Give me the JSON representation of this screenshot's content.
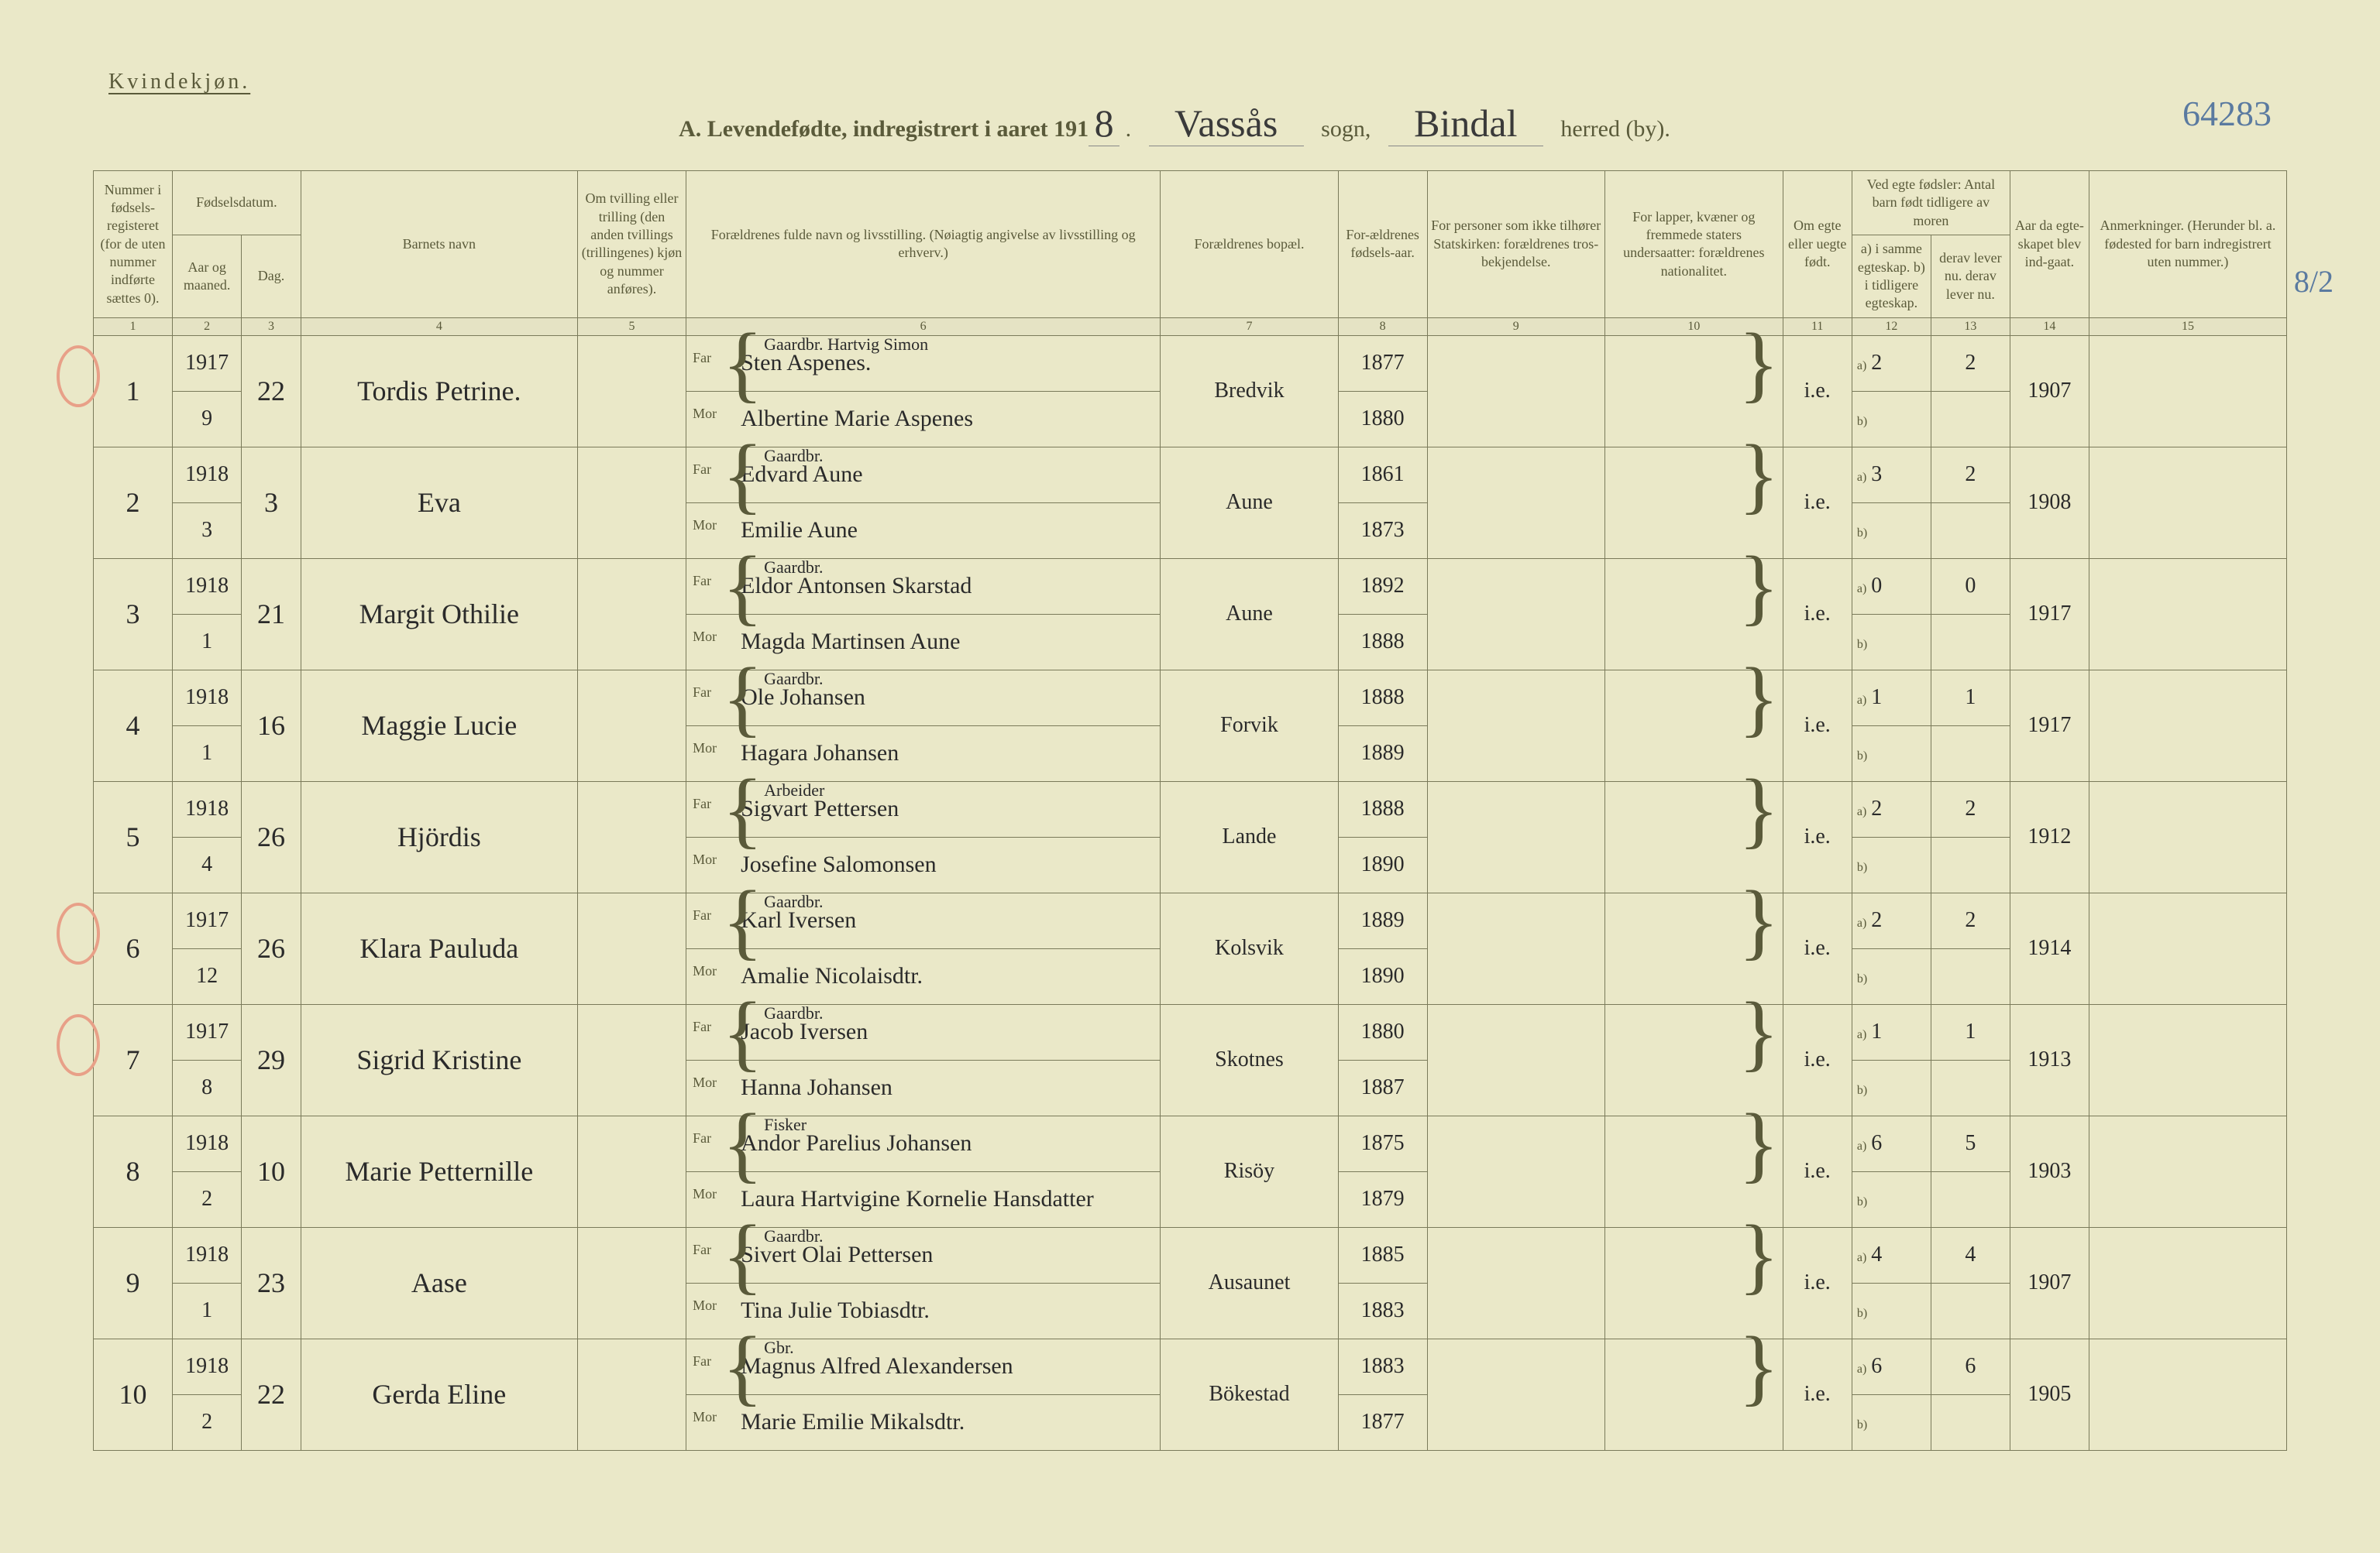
{
  "header": {
    "gender": "Kvindekjøn.",
    "prefix": "A. Levendefødte, indregistrert i aaret 191",
    "year_digit": "8",
    "sogn_label": "sogn,",
    "sogn": "Vassås",
    "herred_label": "herred (by).",
    "herred": "Bindal",
    "page_number": "64283",
    "side_note": "8/2"
  },
  "columns": {
    "c1": "Nummer i fødsels-registeret (for de uten nummer indførte sættes 0).",
    "c2_group": "Fødselsdatum.",
    "c2a": "Aar og maaned.",
    "c2b": "Dag.",
    "c4": "Barnets navn",
    "c5": "Om tvilling eller trilling (den anden tvillings (trillingenes) kjøn og nummer anføres).",
    "c6": "Forældrenes fulde navn og livsstilling. (Nøiagtig angivelse av livsstilling og erhverv.)",
    "c7": "Forældrenes bopæl.",
    "c8": "For-ældrenes fødsels-aar.",
    "c9": "For personer som ikke tilhører Statskirken: forældrenes tros-bekjendelse.",
    "c10": "For lapper, kvæner og fremmede staters undersaatter: forældrenes nationalitet.",
    "c11": "Om egte eller uegte født.",
    "c12_group": "Ved egte fødsler: Antal barn født tidligere av moren",
    "c12a": "a) i samme egteskap. b) i tidligere egteskap.",
    "c12b": "derav lever nu. derav lever nu.",
    "c14": "Aar da egte-skapet blev ind-gaat.",
    "c15": "Anmerkninger. (Herunder bl. a. fødested for barn indregistrert uten nummer.)"
  },
  "colnums": [
    "1",
    "2",
    "3",
    "4",
    "5",
    "6",
    "7",
    "8",
    "9",
    "10",
    "11",
    "12",
    "13",
    "14",
    "15"
  ],
  "rows": [
    {
      "circled": true,
      "num": "1",
      "year": "1917",
      "month": "9",
      "day": "22",
      "name": "Tordis Petrine.",
      "far_occ": "Gaardbr.",
      "far_extra": "Hartvig Simon",
      "far": "Sten Aspenes.",
      "mor": "Albertine Marie Aspenes",
      "bopael": "Bredvik",
      "far_year": "1877",
      "mor_year": "1880",
      "egte": "i.e.",
      "a": "2",
      "a2": "2",
      "married": "1907"
    },
    {
      "circled": false,
      "num": "2",
      "year": "1918",
      "month": "3",
      "day": "3",
      "name": "Eva",
      "far_occ": "Gaardbr.",
      "far": "Edvard Aune",
      "mor": "Emilie Aune",
      "bopael": "Aune",
      "far_year": "1861",
      "mor_year": "1873",
      "egte": "i.e.",
      "a": "3",
      "a2": "2",
      "married": "1908"
    },
    {
      "circled": false,
      "num": "3",
      "year": "1918",
      "month": "1",
      "day": "21",
      "name": "Margit Othilie",
      "far_occ": "Gaardbr.",
      "far": "Eldor Antonsen Skarstad",
      "mor": "Magda Martinsen Aune",
      "bopael": "Aune",
      "far_year": "1892",
      "mor_year": "1888",
      "egte": "i.e.",
      "a": "0",
      "a2": "0",
      "married": "1917"
    },
    {
      "circled": false,
      "num": "4",
      "year": "1918",
      "month": "1",
      "day": "16",
      "name": "Maggie Lucie",
      "far_occ": "Gaardbr.",
      "far": "Ole Johansen",
      "mor": "Hagara Johansen",
      "bopael": "Forvik",
      "far_year": "1888",
      "mor_year": "1889",
      "egte": "i.e.",
      "a": "1",
      "a2": "1",
      "married": "1917"
    },
    {
      "circled": false,
      "num": "5",
      "year": "1918",
      "month": "4",
      "day": "26",
      "name": "Hjördis",
      "far_occ": "Arbeider",
      "far": "Sigvart Pettersen",
      "mor": "Josefine Salomonsen",
      "bopael": "Lande",
      "far_year": "1888",
      "mor_year": "1890",
      "egte": "i.e.",
      "a": "2",
      "a2": "2",
      "married": "1912"
    },
    {
      "circled": true,
      "num": "6",
      "year": "1917",
      "month": "12",
      "day": "26",
      "name": "Klara Pauluda",
      "far_occ": "Gaardbr.",
      "far": "Karl Iversen",
      "mor": "Amalie Nicolaisdtr.",
      "bopael": "Kolsvik",
      "far_year": "1889",
      "mor_year": "1890",
      "egte": "i.e.",
      "a": "2",
      "a2": "2",
      "married": "1914"
    },
    {
      "circled": true,
      "num": "7",
      "year": "1917",
      "month": "8",
      "day": "29",
      "name": "Sigrid Kristine",
      "far_occ": "Gaardbr.",
      "far": "Jacob Iversen",
      "mor": "Hanna Johansen",
      "bopael": "Skotnes",
      "far_year": "1880",
      "mor_year": "1887",
      "egte": "i.e.",
      "a": "1",
      "a2": "1",
      "married": "1913"
    },
    {
      "circled": false,
      "num": "8",
      "year": "1918",
      "month": "2",
      "day": "10",
      "name": "Marie Petternille",
      "far_occ": "Fisker",
      "far": "Andor Parelius Johansen",
      "mor": "Laura Hartvigine Kornelie Hansdatter",
      "bopael": "Risöy",
      "far_year": "1875",
      "mor_year": "1879",
      "egte": "i.e.",
      "a": "6",
      "a2": "5",
      "married": "1903"
    },
    {
      "circled": false,
      "num": "9",
      "year": "1918",
      "month": "1",
      "day": "23",
      "name": "Aase",
      "far_occ": "Gaardbr.",
      "far": "Sivert Olai Pettersen",
      "mor": "Tina Julie Tobiasdtr.",
      "bopael": "Ausaunet",
      "far_year": "1885",
      "mor_year": "1883",
      "egte": "i.e.",
      "a": "4",
      "a2": "4",
      "married": "1907"
    },
    {
      "circled": false,
      "num": "10",
      "year": "1918",
      "month": "2",
      "day": "22",
      "name": "Gerda Eline",
      "far_occ": "Gbr.",
      "far": "Magnus Alfred Alexandersen",
      "mor": "Marie Emilie Mikalsdtr.",
      "bopael": "Bökestad",
      "far_year": "1883",
      "mor_year": "1877",
      "egte": "i.e.",
      "a": "6",
      "a2": "6",
      "married": "1905"
    }
  ],
  "styling": {
    "page_bg": "#eae8c8",
    "border_color": "#7a7a5a",
    "printed_text": "#5a5a3a",
    "handwriting": "#2a2a2a",
    "pencil_blue": "#5a7aa0",
    "circle_red": "#e8a088",
    "script_font": "Brush Script MT",
    "printed_font": "Georgia",
    "col_widths_pct": [
      4,
      3.5,
      3,
      14,
      5.5,
      24,
      9,
      4.5,
      9,
      9,
      3.5,
      4,
      4,
      4,
      10
    ]
  }
}
